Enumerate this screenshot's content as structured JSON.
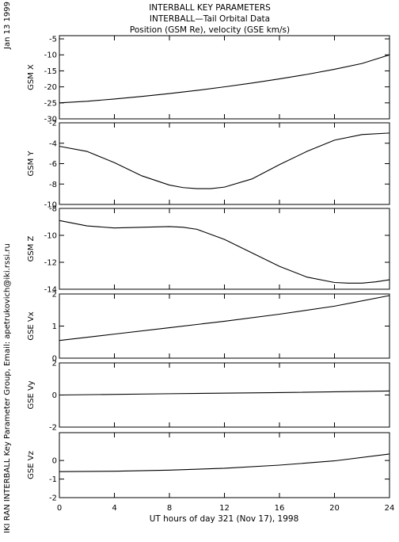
{
  "header": {
    "line1": "INTERBALL KEY PARAMETERS",
    "line2": "INTERBALL—Tail Orbital Data",
    "line3": "Position (GSM Re), velocity (GSE km/s)"
  },
  "side": {
    "date": "Jan 13 1999",
    "credit": "IKI RAN INTERBALL Key Parameter Group, Email: apetrukovich@iki.rssi.ru"
  },
  "chart_data": {
    "type": "line",
    "xlabel": "UT hours of day 321 (Nov 17), 1998",
    "xlim": [
      0,
      24
    ],
    "xticks": [
      0,
      4,
      8,
      12,
      16,
      20,
      24
    ],
    "panels": [
      {
        "ylabel": "GSM X",
        "ylim": [
          -30,
          -4
        ],
        "yticks": [
          -5,
          -10,
          -15,
          -20,
          -25,
          -30
        ],
        "x": [
          0,
          2,
          4,
          6,
          8,
          10,
          12,
          14,
          16,
          18,
          20,
          22,
          24
        ],
        "values": [
          -25.0,
          -24.5,
          -23.8,
          -23.0,
          -22.1,
          -21.1,
          -20.0,
          -18.8,
          -17.5,
          -16.1,
          -14.5,
          -12.7,
          -10.0
        ]
      },
      {
        "ylabel": "GSM Y",
        "ylim": [
          -10,
          -2
        ],
        "yticks": [
          -2,
          -4,
          -6,
          -8,
          -10
        ],
        "x": [
          0,
          2,
          4,
          6,
          8,
          9,
          10,
          11,
          12,
          14,
          16,
          18,
          20,
          22,
          24
        ],
        "values": [
          -4.3,
          -4.8,
          -5.9,
          -7.2,
          -8.1,
          -8.35,
          -8.45,
          -8.45,
          -8.3,
          -7.5,
          -6.1,
          -4.8,
          -3.7,
          -3.15,
          -3.0
        ]
      },
      {
        "ylabel": "GSM Z",
        "ylim": [
          -14,
          -8
        ],
        "yticks": [
          -8,
          -10,
          -12,
          -14
        ],
        "x": [
          0,
          2,
          4,
          6,
          8,
          9,
          10,
          12,
          14,
          16,
          18,
          20,
          21,
          22,
          23,
          24
        ],
        "values": [
          -8.9,
          -9.3,
          -9.45,
          -9.4,
          -9.35,
          -9.4,
          -9.55,
          -10.3,
          -11.3,
          -12.3,
          -13.1,
          -13.5,
          -13.55,
          -13.55,
          -13.45,
          -13.3
        ]
      },
      {
        "ylabel": "GSE Vx",
        "ylim": [
          0,
          2
        ],
        "yticks": [
          0,
          1,
          2
        ],
        "x": [
          0,
          4,
          8,
          12,
          16,
          20,
          24
        ],
        "values": [
          0.55,
          0.75,
          0.95,
          1.15,
          1.37,
          1.62,
          1.95
        ]
      },
      {
        "ylabel": "GSE Vy",
        "ylim": [
          -2,
          2
        ],
        "yticks": [
          2,
          0,
          -2
        ],
        "x": [
          0,
          8,
          16,
          24
        ],
        "values": [
          0.0,
          0.08,
          0.15,
          0.25
        ]
      },
      {
        "ylabel": "GSE Vz",
        "ylim": [
          -2,
          1.5
        ],
        "yticks": [
          0,
          -1,
          -2
        ],
        "x": [
          0,
          4,
          8,
          12,
          16,
          20,
          24
        ],
        "values": [
          -0.6,
          -0.58,
          -0.52,
          -0.42,
          -0.25,
          -0.02,
          0.35
        ]
      }
    ]
  }
}
